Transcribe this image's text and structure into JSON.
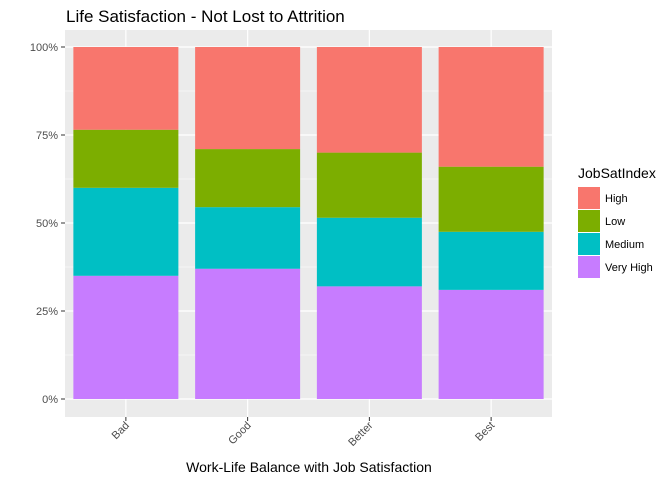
{
  "chart_data": {
    "type": "bar",
    "stacked": true,
    "percent": true,
    "title": "Life Satisfaction - Not Lost to Attrition",
    "xlabel": "Work-Life Balance with Job Satisfaction",
    "ylabel": "",
    "categories": [
      "Bad",
      "Good",
      "Better",
      "Best"
    ],
    "y_ticks": [
      "0%",
      "25%",
      "50%",
      "75%",
      "100%"
    ],
    "ylim": [
      0,
      1
    ],
    "grid": true,
    "legend": {
      "title": "JobSatIndex",
      "placement": "right"
    },
    "series": [
      {
        "name": "Very High",
        "color": "#C77CFF",
        "values": [
          0.35,
          0.37,
          0.32,
          0.31
        ]
      },
      {
        "name": "Medium",
        "color": "#00BFC4",
        "values": [
          0.25,
          0.175,
          0.195,
          0.165
        ]
      },
      {
        "name": "Low",
        "color": "#7CAE00",
        "values": [
          0.165,
          0.165,
          0.185,
          0.185
        ]
      },
      {
        "name": "High",
        "color": "#F8766D",
        "values": [
          0.235,
          0.29,
          0.3,
          0.34
        ]
      }
    ],
    "legend_order": [
      "High",
      "Low",
      "Medium",
      "Very High"
    ]
  }
}
